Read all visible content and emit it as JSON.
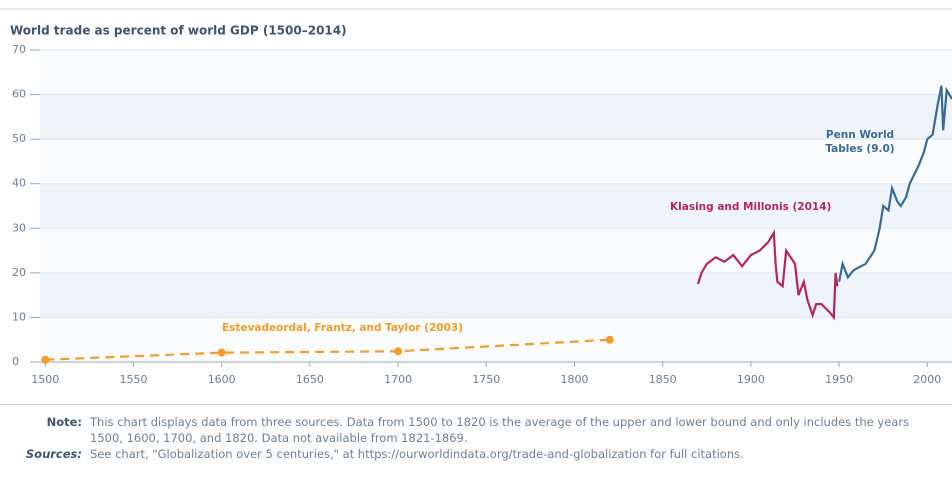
{
  "chart_data": {
    "type": "line",
    "title": "World trade as percent of world GDP (1500–2014)",
    "xlim": [
      1497,
      2014
    ],
    "xticks": [
      1500,
      1550,
      1600,
      1650,
      1700,
      1750,
      1800,
      1850,
      1900,
      1950,
      2000
    ],
    "ylim": [
      0,
      70
    ],
    "yticks": [
      0,
      10,
      20,
      30,
      40,
      50,
      60,
      70
    ],
    "grid": true,
    "series": [
      {
        "name": "Estevadeordal, Frantz, and Taylor (2003)",
        "color": "#f39c2b",
        "dashed": true,
        "markers": true,
        "x": [
          1500,
          1600,
          1700,
          1820
        ],
        "values": [
          0.5,
          2.1,
          2.4,
          5.0
        ]
      },
      {
        "name": "Klasing and Millonis (2014)",
        "color": "#b4275a",
        "x": [
          1870,
          1872,
          1875,
          1880,
          1885,
          1890,
          1895,
          1900,
          1905,
          1910,
          1913,
          1914,
          1915,
          1918,
          1920,
          1925,
          1927,
          1930,
          1932,
          1935,
          1937,
          1940,
          1945,
          1947,
          1948,
          1949
        ],
        "values": [
          17.5,
          20,
          22,
          23.5,
          22.5,
          24,
          21.5,
          24,
          25,
          27,
          29,
          22,
          18,
          17,
          25,
          22,
          15,
          18,
          14,
          10.5,
          13,
          13,
          11,
          10,
          20,
          17
        ]
      },
      {
        "name": "Penn World Tables (9.0)",
        "color": "#3a6a96",
        "x": [
          1950,
          1952,
          1955,
          1958,
          1960,
          1965,
          1970,
          1973,
          1975,
          1978,
          1980,
          1983,
          1985,
          1988,
          1990,
          1995,
          1998,
          2000,
          2003,
          2006,
          2008,
          2009,
          2011,
          2014
        ],
        "values": [
          18,
          22,
          19,
          20.5,
          21,
          22,
          25,
          30,
          35,
          34,
          39,
          36,
          35,
          37,
          40,
          44,
          47,
          50,
          51,
          58,
          62,
          52,
          61,
          59
        ]
      }
    ]
  },
  "note_label": "Note:",
  "note": "This chart displays data from three sources. Data from 1500 to 1820 is the average of the upper and lower bound and only includes the years 1500, 1600, 1700, and 1820. Data not available from 1821-1869.",
  "sources_label": "Sources:",
  "sources": "See chart, \"Globalization over 5 centuries,\" at https://ourworldindata.org/trade-and-globalization for full citations."
}
